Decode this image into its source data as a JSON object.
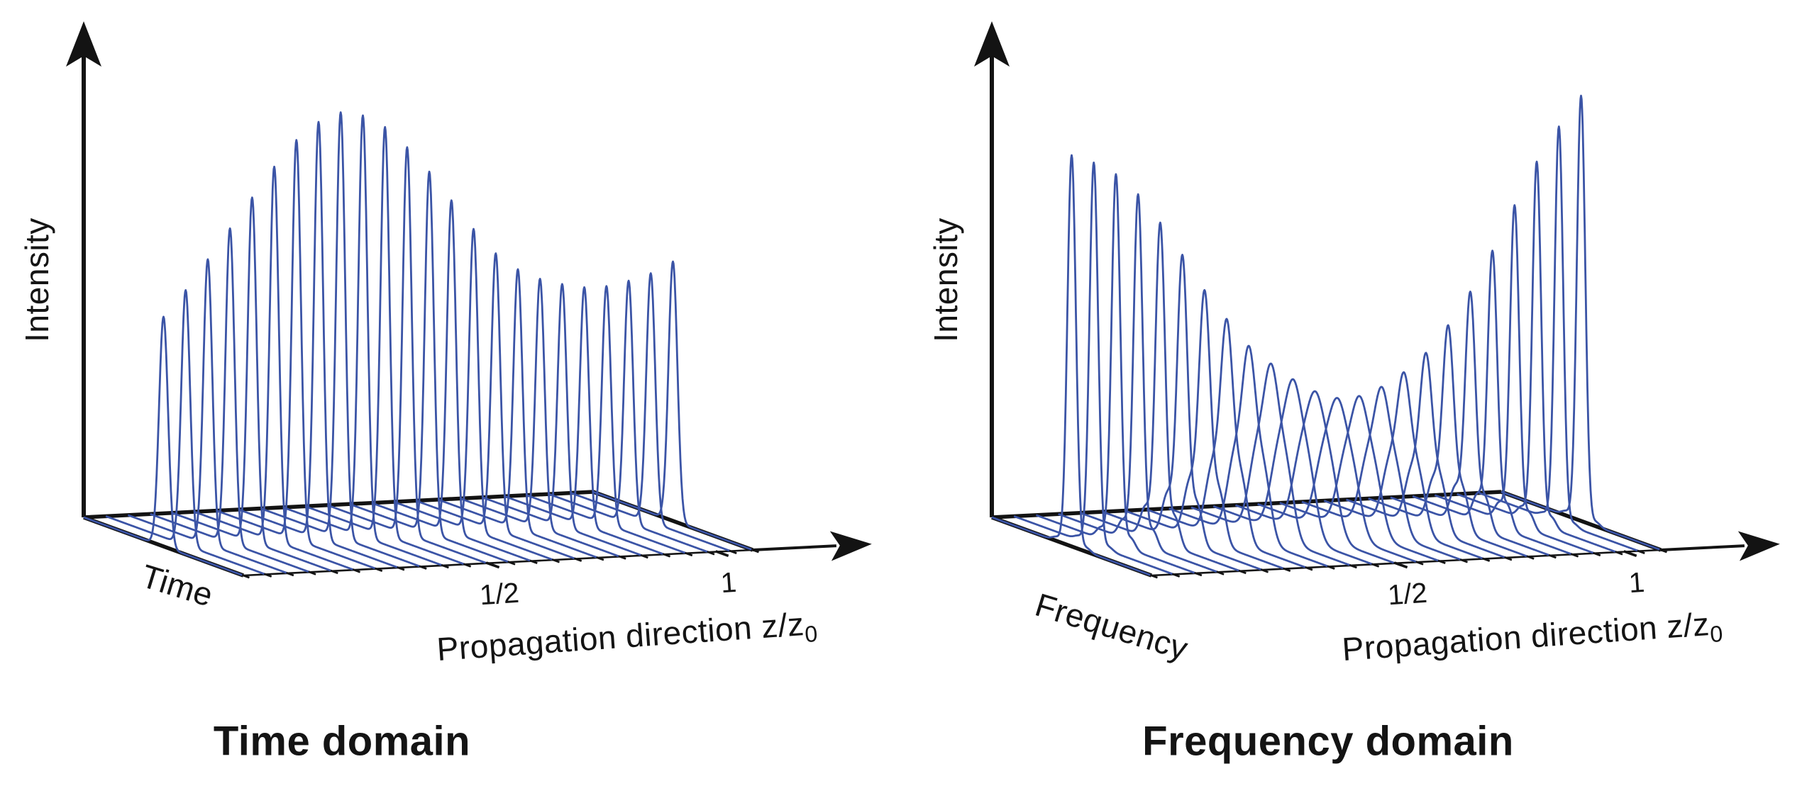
{
  "figure": {
    "background": "#ffffff",
    "trace_color": "#3B54A6",
    "axis_color": "#131313",
    "text_color": "#141414"
  },
  "chart_data": [
    {
      "type": "line",
      "projection": "3d_waterfall",
      "title": "Time domain",
      "ylabel": "Intensity",
      "depth_label": "Time",
      "xlabel": "Propagation direction z/z",
      "xlabel_sub": "0",
      "x_ticks": [
        {
          "label": "1/2",
          "f": 0.48
        },
        {
          "label": "1",
          "f": 0.93
        }
      ],
      "z_min": 0,
      "z_max": 1.08,
      "n_traces": 24,
      "grid": false,
      "legend": null,
      "trace_peak_heights": [
        0.54,
        0.6,
        0.67,
        0.74,
        0.81,
        0.88,
        0.94,
        0.98,
        1.0,
        0.99,
        0.96,
        0.91,
        0.85,
        0.78,
        0.71,
        0.65,
        0.61,
        0.585,
        0.57,
        0.56,
        0.56,
        0.57,
        0.585,
        0.61
      ],
      "trace_sigma": [
        0.028,
        0.028,
        0.028,
        0.028,
        0.028,
        0.028,
        0.028,
        0.028,
        0.028,
        0.028,
        0.028,
        0.028,
        0.028,
        0.028,
        0.028,
        0.028,
        0.028,
        0.028,
        0.028,
        0.028,
        0.028,
        0.028,
        0.028,
        0.028
      ],
      "trace_side_lobe_amp": [
        0,
        0,
        0,
        0,
        0,
        0,
        0,
        0,
        0,
        0,
        0,
        0,
        0,
        0,
        0,
        0,
        0,
        0,
        0,
        0,
        0,
        0,
        0,
        0
      ],
      "side_lobe_offset": 0
    },
    {
      "type": "line",
      "projection": "3d_waterfall",
      "title": "Frequency domain",
      "ylabel": "Intensity",
      "depth_label": "Frequency",
      "xlabel": "Propagation direction z/z",
      "xlabel_sub": "0",
      "x_ticks": [
        {
          "label": "1/2",
          "f": 0.48
        },
        {
          "label": "1",
          "f": 0.93
        }
      ],
      "z_min": 0,
      "z_max": 1.08,
      "n_traces": 24,
      "grid": false,
      "legend": null,
      "trace_peak_heights": [
        0.92,
        0.9,
        0.87,
        0.82,
        0.75,
        0.67,
        0.58,
        0.5,
        0.42,
        0.36,
        0.31,
        0.275,
        0.26,
        0.27,
        0.3,
        0.345,
        0.4,
        0.47,
        0.55,
        0.645,
        0.75,
        0.85,
        0.93,
        1.0
      ],
      "trace_sigma": [
        0.0264,
        0.0267,
        0.0274,
        0.0285,
        0.0303,
        0.0327,
        0.036,
        0.04,
        0.0442,
        0.0482,
        0.0513,
        0.0531,
        0.0531,
        0.0513,
        0.0482,
        0.0442,
        0.04,
        0.036,
        0.0327,
        0.0303,
        0.0285,
        0.0274,
        0.0267,
        0.0264
      ],
      "trace_side_lobe_amp": [
        0.01,
        0.01,
        0.03,
        0.05,
        0.09,
        0.14,
        0.2,
        0.28,
        0.37,
        0.45,
        0.51,
        0.55,
        0.55,
        0.51,
        0.45,
        0.37,
        0.28,
        0.2,
        0.14,
        0.09,
        0.05,
        0.03,
        0.01,
        0.01
      ],
      "side_lobe_offset": 0.095
    }
  ]
}
